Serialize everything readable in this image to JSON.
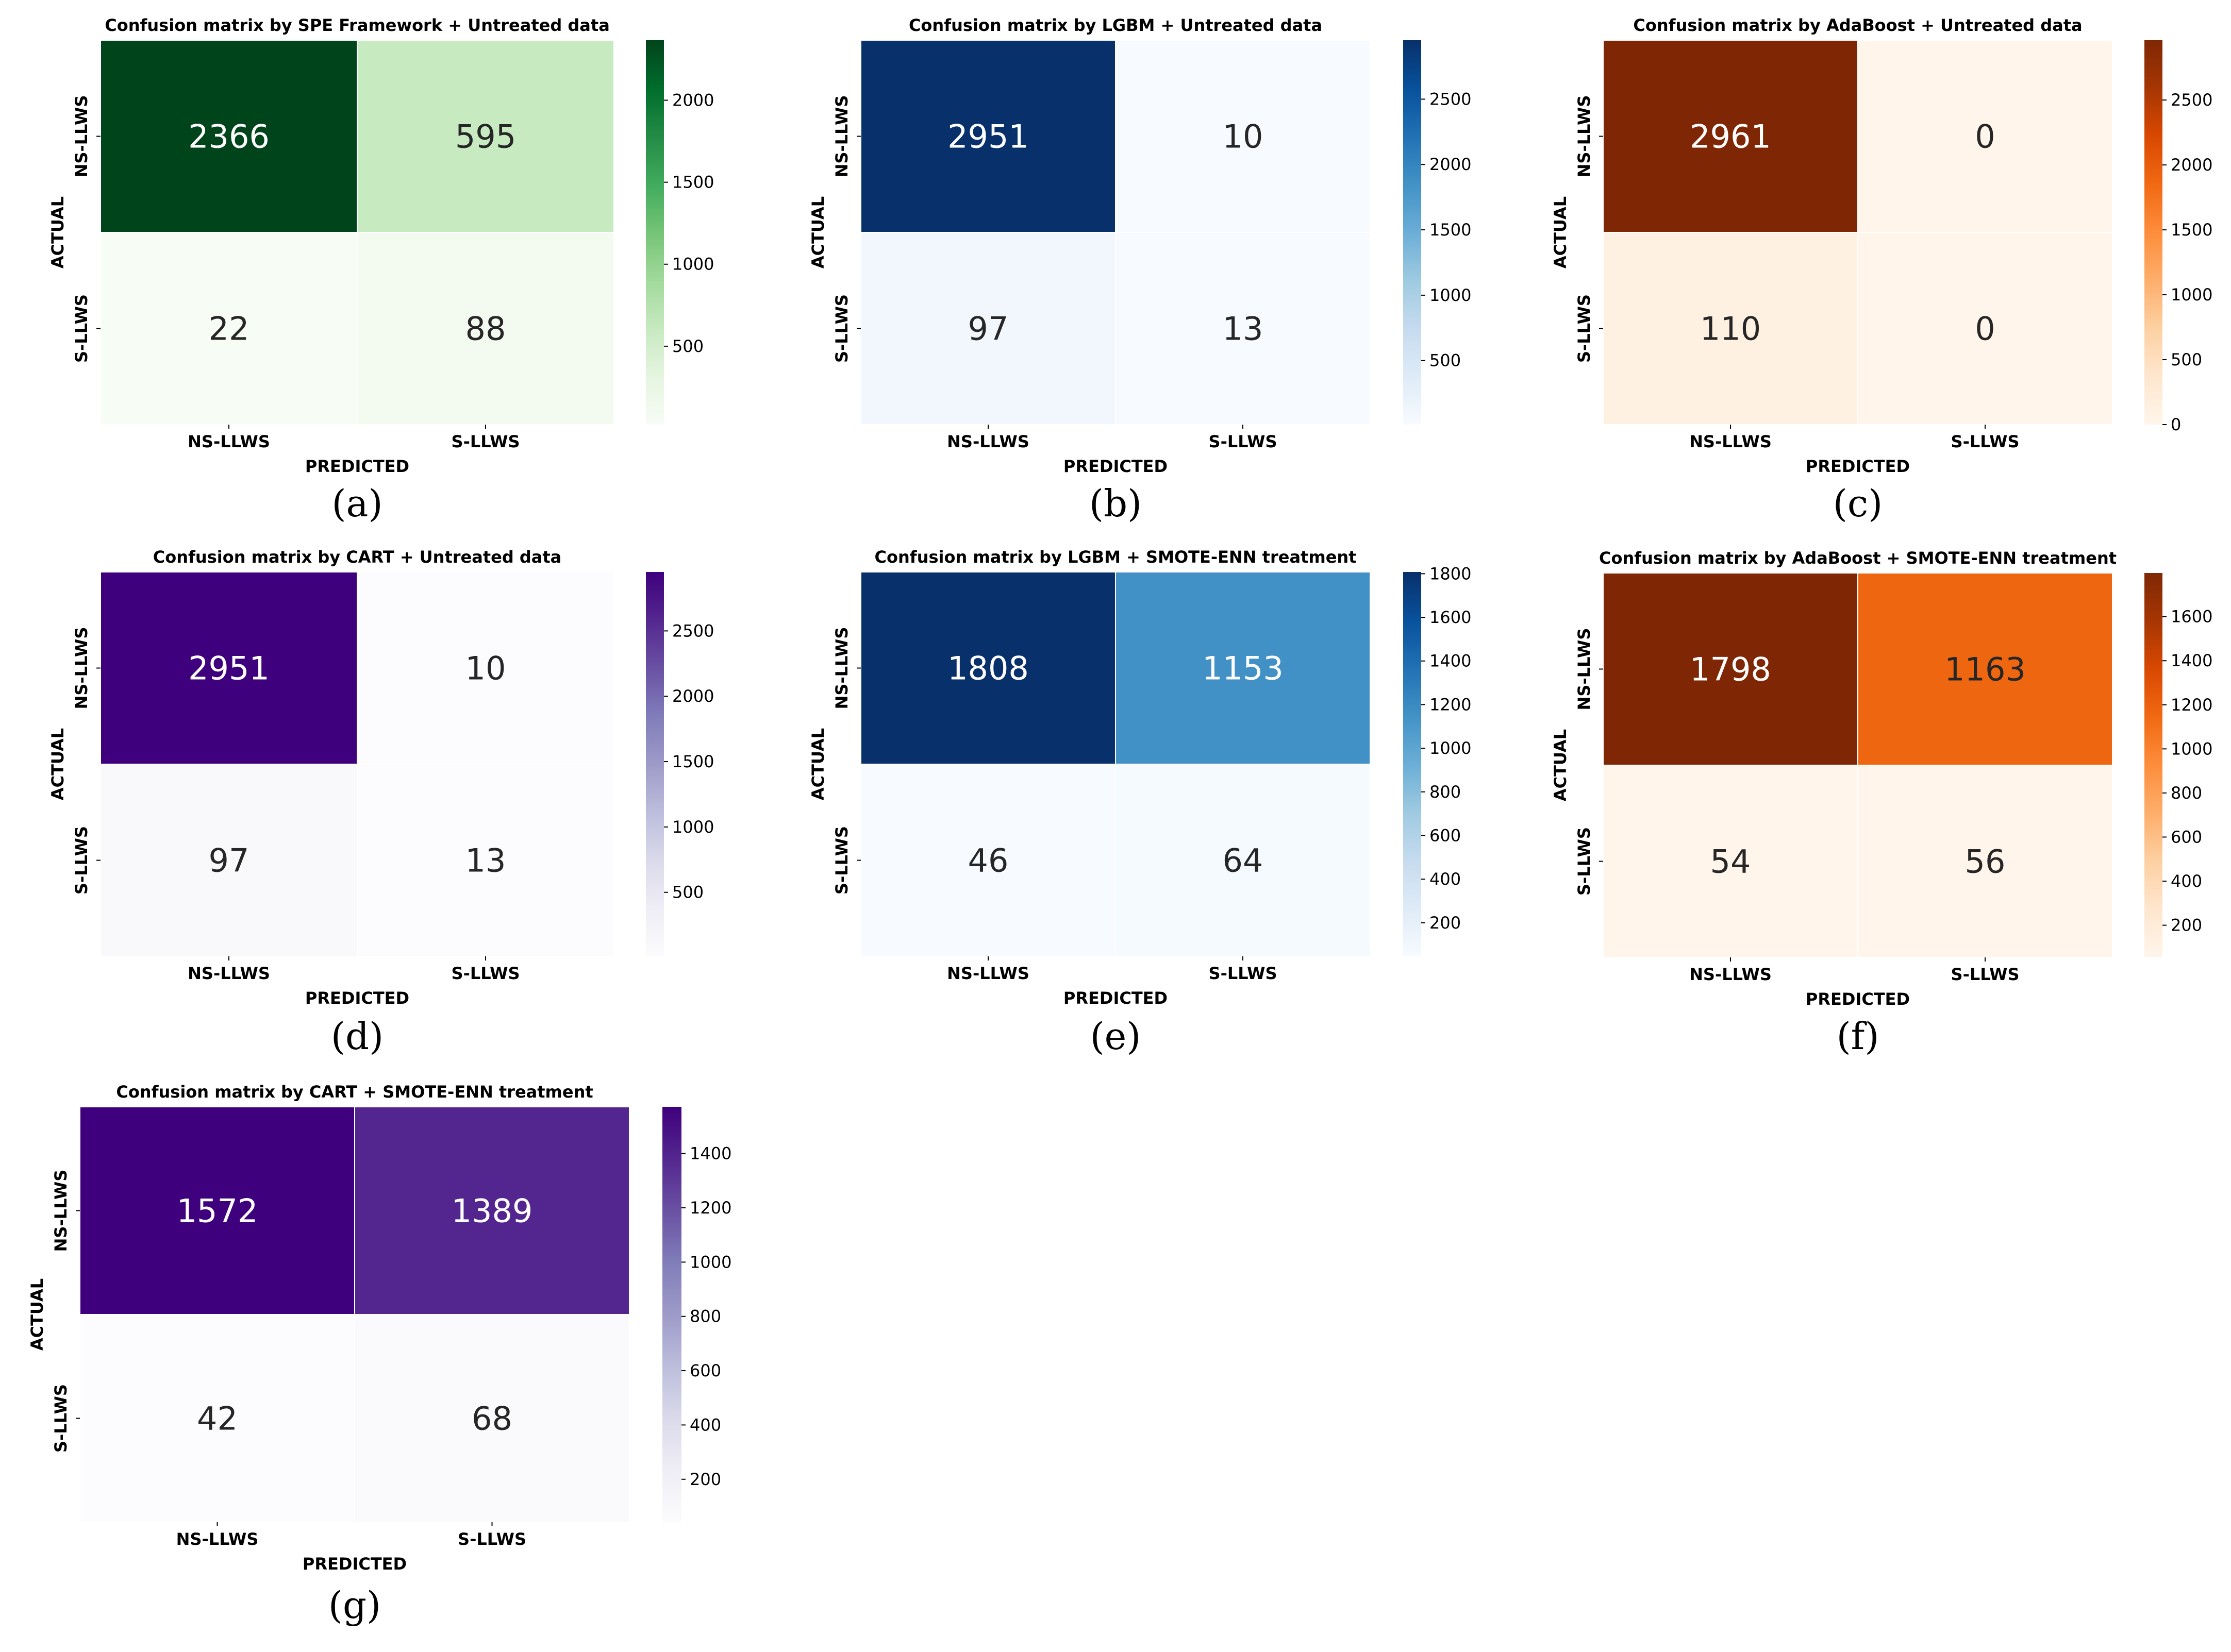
{
  "chart_data": [
    {
      "type": "heatmap",
      "panel_label": "(a)",
      "title": "Confusion matrix by SPE Framework + Untreated data",
      "xlabel": "PREDICTED",
      "ylabel": "ACTUAL",
      "x_categories": [
        "NS-LLWS",
        "S-LLWS"
      ],
      "y_categories": [
        "NS-LLWS",
        "S-LLWS"
      ],
      "values": [
        [
          2366,
          595
        ],
        [
          22,
          88
        ]
      ],
      "colormap": "Greens",
      "colorbar_range": [
        22,
        2366
      ],
      "colorbar_ticks": [
        500,
        1000,
        1500,
        2000
      ]
    },
    {
      "type": "heatmap",
      "panel_label": "(b)",
      "title": "Confusion matrix by LGBM + Untreated data",
      "xlabel": "PREDICTED",
      "ylabel": "ACTUAL",
      "x_categories": [
        "NS-LLWS",
        "S-LLWS"
      ],
      "y_categories": [
        "NS-LLWS",
        "S-LLWS"
      ],
      "values": [
        [
          2951,
          10
        ],
        [
          97,
          13
        ]
      ],
      "colormap": "Blues",
      "colorbar_range": [
        10,
        2951
      ],
      "colorbar_ticks": [
        500,
        1000,
        1500,
        2000,
        2500
      ]
    },
    {
      "type": "heatmap",
      "panel_label": "(c)",
      "title": "Confusion matrix by AdaBoost + Untreated data",
      "xlabel": "PREDICTED",
      "ylabel": "ACTUAL",
      "x_categories": [
        "NS-LLWS",
        "S-LLWS"
      ],
      "y_categories": [
        "NS-LLWS",
        "S-LLWS"
      ],
      "values": [
        [
          2961,
          0
        ],
        [
          110,
          0
        ]
      ],
      "colormap": "Oranges",
      "colorbar_range": [
        0,
        2961
      ],
      "colorbar_ticks": [
        0,
        500,
        1000,
        1500,
        2000,
        2500
      ]
    },
    {
      "type": "heatmap",
      "panel_label": "(d)",
      "title": "Confusion matrix by CART + Untreated data",
      "xlabel": "PREDICTED",
      "ylabel": "ACTUAL",
      "x_categories": [
        "NS-LLWS",
        "S-LLWS"
      ],
      "y_categories": [
        "NS-LLWS",
        "S-LLWS"
      ],
      "values": [
        [
          2951,
          10
        ],
        [
          97,
          13
        ]
      ],
      "colormap": "Purples",
      "colorbar_range": [
        10,
        2951
      ],
      "colorbar_ticks": [
        500,
        1000,
        1500,
        2000,
        2500
      ]
    },
    {
      "type": "heatmap",
      "panel_label": "(e)",
      "title": "Confusion matrix by LGBM + SMOTE-ENN treatment",
      "xlabel": "PREDICTED",
      "ylabel": "ACTUAL",
      "x_categories": [
        "NS-LLWS",
        "S-LLWS"
      ],
      "y_categories": [
        "NS-LLWS",
        "S-LLWS"
      ],
      "values": [
        [
          1808,
          1153
        ],
        [
          46,
          64
        ]
      ],
      "colormap": "Blues",
      "colorbar_range": [
        46,
        1808
      ],
      "colorbar_ticks": [
        200,
        400,
        600,
        800,
        1000,
        1200,
        1400,
        1600,
        1800
      ]
    },
    {
      "type": "heatmap",
      "panel_label": "(f)",
      "title": "Confusion matrix by AdaBoost + SMOTE-ENN treatment",
      "xlabel": "PREDICTED",
      "ylabel": "ACTUAL",
      "x_categories": [
        "NS-LLWS",
        "S-LLWS"
      ],
      "y_categories": [
        "NS-LLWS",
        "S-LLWS"
      ],
      "values": [
        [
          1798,
          1163
        ],
        [
          54,
          56
        ]
      ],
      "colormap": "Oranges",
      "colorbar_range": [
        54,
        1798
      ],
      "colorbar_ticks": [
        200,
        400,
        600,
        800,
        1000,
        1200,
        1400,
        1600
      ]
    },
    {
      "type": "heatmap",
      "panel_label": "(g)",
      "title": "Confusion matrix by CART + SMOTE-ENN treatment",
      "xlabel": "PREDICTED",
      "ylabel": "ACTUAL",
      "x_categories": [
        "NS-LLWS",
        "S-LLWS"
      ],
      "y_categories": [
        "NS-LLWS",
        "S-LLWS"
      ],
      "values": [
        [
          1572,
          1389
        ],
        [
          42,
          68
        ]
      ],
      "colormap": "Purples",
      "colorbar_range": [
        42,
        1572
      ],
      "colorbar_ticks": [
        200,
        400,
        600,
        800,
        1000,
        1200,
        1400
      ]
    }
  ],
  "colormaps": {
    "Greens": [
      "#f7fcf5",
      "#e5f5e0",
      "#c7e9c0",
      "#a1d99b",
      "#74c476",
      "#41ab5d",
      "#238b45",
      "#006d2c",
      "#00441b"
    ],
    "Blues": [
      "#f7fbff",
      "#deebf7",
      "#c6dbef",
      "#9ecae1",
      "#6baed6",
      "#4292c6",
      "#2171b5",
      "#08519c",
      "#08306b"
    ],
    "Oranges": [
      "#fff5eb",
      "#fee6ce",
      "#fdd0a2",
      "#fdae6b",
      "#fd8d3c",
      "#f16913",
      "#d94801",
      "#a63603",
      "#7f2704"
    ],
    "Purples": [
      "#fcfbfd",
      "#efedf5",
      "#dadaeb",
      "#bcbddc",
      "#9e9ac8",
      "#807dba",
      "#6a51a3",
      "#54278f",
      "#3f007d"
    ]
  }
}
